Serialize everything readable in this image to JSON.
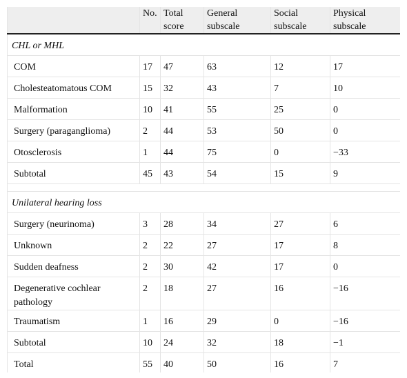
{
  "table": {
    "header": [
      "No.",
      "Total score",
      "General subscale",
      "Social subscale",
      "Physical subscale"
    ],
    "sections": [
      {
        "title": "CHL or MHL",
        "rows": [
          [
            "COM",
            "17",
            "47",
            "63",
            "12",
            "17"
          ],
          [
            "Cholesteatomatous COM",
            "15",
            "32",
            "43",
            "7",
            "10"
          ],
          [
            "Malformation",
            "10",
            "41",
            "55",
            "25",
            "0"
          ],
          [
            "Surgery (paraganglioma)",
            "2",
            "44",
            "53",
            "50",
            "0"
          ],
          [
            "Otosclerosis",
            "1",
            "44",
            "75",
            "0",
            "−33"
          ],
          [
            "Subtotal",
            "45",
            "43",
            "54",
            "15",
            "9"
          ]
        ]
      },
      {
        "title": "Unilateral hearing loss",
        "rows": [
          [
            "Surgery (neurinoma)",
            "3",
            "28",
            "34",
            "27",
            "6"
          ],
          [
            "Unknown",
            "2",
            "22",
            "27",
            "17",
            "8"
          ],
          [
            "Sudden deafness",
            "2",
            "30",
            "42",
            "17",
            "0"
          ],
          [
            "Degenerative cochlear pathology",
            "2",
            "18",
            "27",
            "16",
            "−16"
          ],
          [
            "Traumatism",
            "1",
            "16",
            "29",
            "0",
            "−16"
          ],
          [
            "Subtotal",
            "10",
            "24",
            "32",
            "18",
            "−1"
          ],
          [
            "Total",
            "55",
            "40",
            "50",
            "16",
            "7"
          ]
        ]
      }
    ]
  }
}
